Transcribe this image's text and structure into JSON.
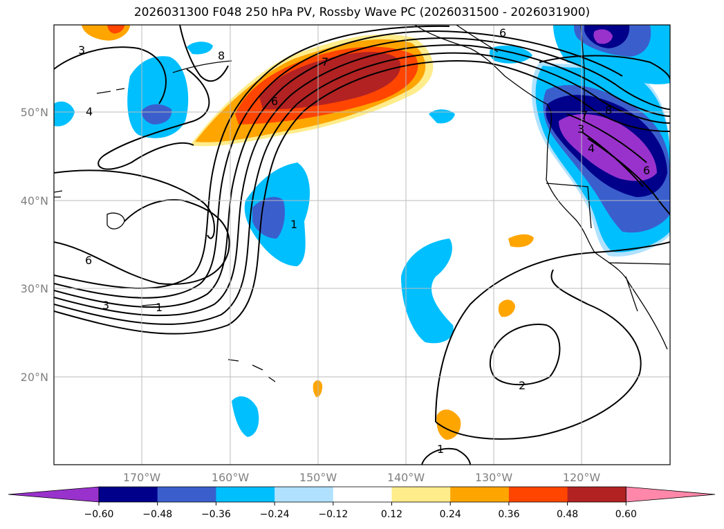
{
  "title": "2026031300 F048 250 hPa PV, Rossby Wave PC (2026031500 - 2026031900)",
  "lat_labels": [
    "50°N",
    "40°N",
    "30°N",
    "20°N"
  ],
  "lon_labels": [
    "170°W",
    "160°W",
    "150°W",
    "140°W",
    "130°W",
    "120°W"
  ],
  "colorbar": {
    "ticks": [
      "−0.60",
      "−0.48",
      "−0.36",
      "−0.24",
      "−0.12",
      "0.12",
      "0.24",
      "0.36",
      "0.48",
      "0.60"
    ],
    "colors": [
      "#9932CC",
      "#00008B",
      "#3A5FCD",
      "#00BFFF",
      "#B0E2FF",
      "#FFFFFF",
      "#FFEC8B",
      "#FFA500",
      "#FF4500",
      "#B22222",
      "#FF88AA"
    ]
  },
  "contour_labels": [
    "3",
    "8",
    "4",
    "7",
    "6",
    "1",
    "6",
    "6",
    "7",
    "8",
    "4",
    "6",
    "3",
    "1",
    "2",
    "1",
    "3"
  ],
  "chart_data": {
    "type": "map",
    "title": "2026031300 F048 250 hPa PV, Rossby Wave PC (2026031500 - 2026031900)",
    "lat_range": [
      10,
      60
    ],
    "lon_range": [
      -180,
      -110
    ],
    "fill_variable": "Rossby Wave PC",
    "contour_variable": "250 hPa PV",
    "fill_levels": [
      -0.6,
      -0.48,
      -0.36,
      -0.24,
      -0.12,
      0.12,
      0.24,
      0.36,
      0.48,
      0.6
    ]
  }
}
